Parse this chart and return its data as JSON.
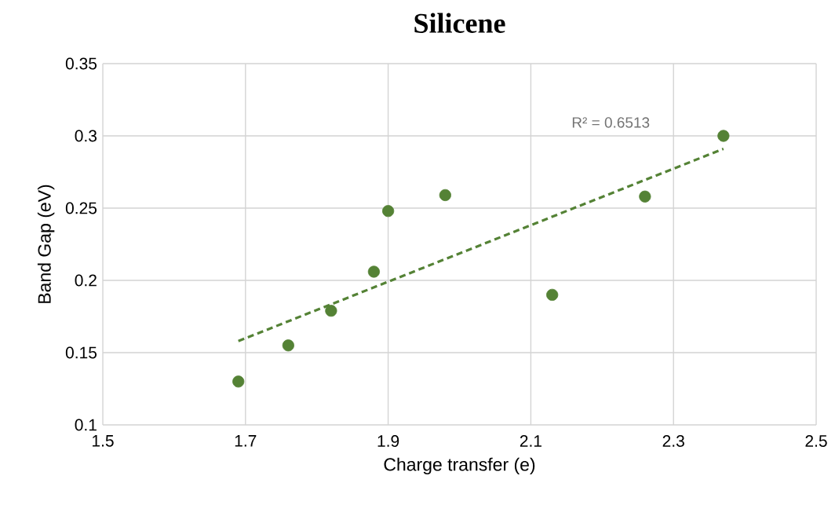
{
  "chart_data": {
    "type": "scatter",
    "title": "Silicene",
    "xlabel": "Charge transfer (e)",
    "ylabel": "Band Gap (eV)",
    "xlim": [
      1.5,
      2.5
    ],
    "ylim": [
      0.1,
      0.35
    ],
    "xticks": [
      1.5,
      1.7,
      1.9,
      2.1,
      2.3,
      2.5
    ],
    "yticks": [
      0.1,
      0.15,
      0.2,
      0.25,
      0.3,
      0.35
    ],
    "grid": true,
    "annotations": [
      "R² = 0.6513"
    ],
    "series": [
      {
        "marker": "circle",
        "color": "#548235",
        "x": [
          1.69,
          1.76,
          1.82,
          1.88,
          1.9,
          1.98,
          2.13,
          2.26,
          2.37
        ],
        "values": [
          0.13,
          0.155,
          0.179,
          0.206,
          0.248,
          0.259,
          0.19,
          0.258,
          0.3
        ]
      },
      {
        "type": "line",
        "marker": "none",
        "color": "#548235",
        "line_style": "dashed",
        "x": [
          1.69,
          2.37
        ],
        "values": [
          0.158,
          0.291
        ]
      }
    ]
  }
}
